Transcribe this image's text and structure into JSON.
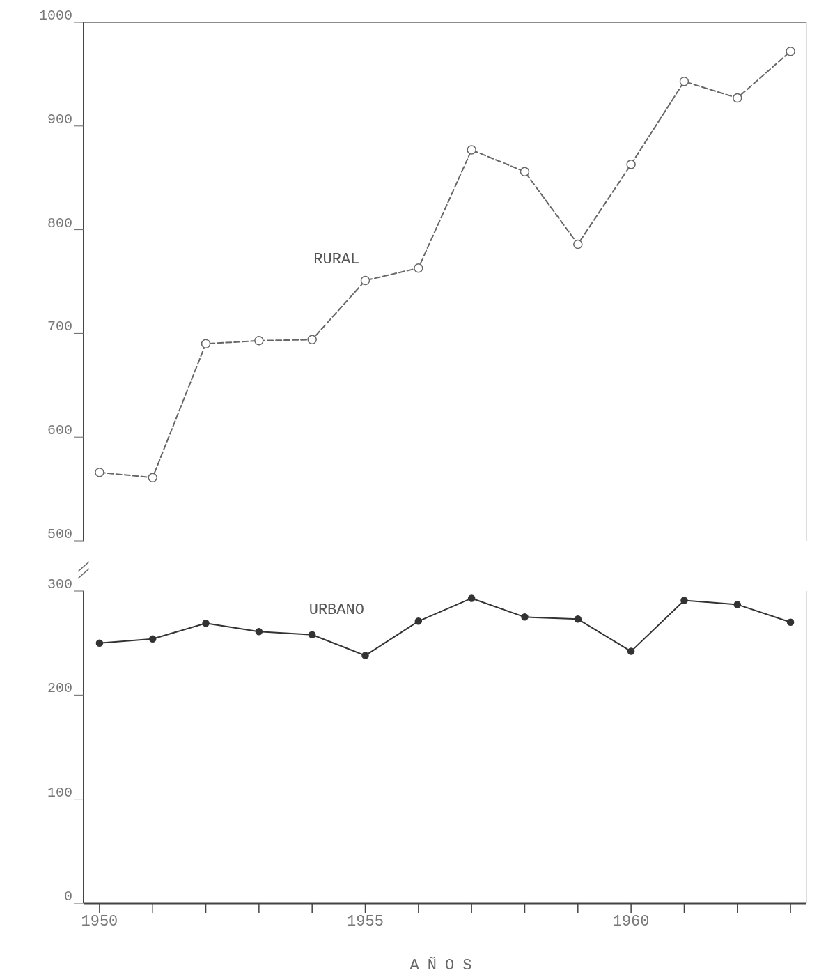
{
  "chart_data": [
    {
      "type": "line",
      "x": [
        1950,
        1951,
        1952,
        1953,
        1954,
        1955,
        1956,
        1957,
        1958,
        1959,
        1960,
        1961,
        1962,
        1963
      ],
      "series": [
        {
          "name": "RURAL",
          "color": "#666666",
          "line_style": "dashed",
          "marker": "circle",
          "values": [
            566,
            561,
            690,
            693,
            694,
            751,
            763,
            877,
            856,
            786,
            863,
            943,
            927,
            972
          ]
        }
      ],
      "xlim": [
        1949.7,
        1963.3
      ],
      "ylim": [
        500,
        1000
      ],
      "yticks": [
        500,
        600,
        700,
        800,
        900,
        1000
      ],
      "tick_labels": "y",
      "grid": false
    },
    {
      "type": "line",
      "x": [
        1950,
        1951,
        1952,
        1953,
        1954,
        1955,
        1956,
        1957,
        1958,
        1959,
        1960,
        1961,
        1962,
        1963
      ],
      "series": [
        {
          "name": "URBANO",
          "color": "#333333",
          "line_style": "solid",
          "marker": "circle",
          "values": [
            250,
            254,
            269,
            261,
            258,
            238,
            271,
            293,
            275,
            273,
            242,
            291,
            287,
            270
          ]
        }
      ],
      "xlim": [
        1949.7,
        1963.3
      ],
      "ylim": [
        0,
        300
      ],
      "yticks": [
        0,
        100,
        200,
        300
      ],
      "xticks": [
        1950,
        {
          "value": 1951,
          "label": null
        },
        {
          "value": 1952,
          "label": null
        },
        {
          "value": 1953,
          "label": null
        },
        {
          "value": 1954,
          "label": null
        },
        1955,
        {
          "value": 1956,
          "label": null
        },
        {
          "value": 1957,
          "label": null
        },
        {
          "value": 1958,
          "label": null
        },
        {
          "value": 1959,
          "label": null
        },
        1960,
        {
          "value": 1961,
          "label": null
        },
        {
          "value": 1962,
          "label": null
        },
        {
          "value": 1963,
          "label": null
        }
      ],
      "xlabel": "AÑOS",
      "grid": false
    }
  ]
}
